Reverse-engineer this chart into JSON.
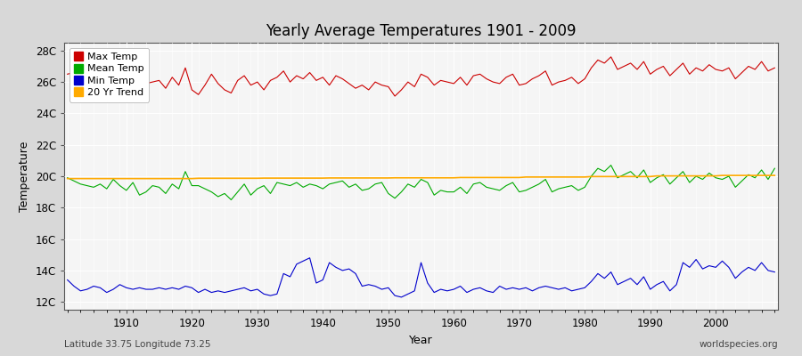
{
  "title": "Yearly Average Temperatures 1901 - 2009",
  "xlabel": "Year",
  "ylabel": "Temperature",
  "year_start": 1901,
  "year_end": 2009,
  "ylim": [
    11.5,
    28.5
  ],
  "yticks": [
    12,
    14,
    16,
    18,
    20,
    22,
    24,
    26,
    28
  ],
  "ytick_labels": [
    "12C",
    "14C",
    "16C",
    "18C",
    "20C",
    "22C",
    "24C",
    "26C",
    "28C"
  ],
  "xticks": [
    1910,
    1920,
    1930,
    1940,
    1950,
    1960,
    1970,
    1980,
    1990,
    2000
  ],
  "fig_bg_color": "#d8d8d8",
  "plot_bg_color": "#f5f5f5",
  "grid_color": "#ffffff",
  "legend_items": [
    {
      "label": "Max Temp",
      "color": "#cc0000"
    },
    {
      "label": "Mean Temp",
      "color": "#00aa00"
    },
    {
      "label": "Min Temp",
      "color": "#0000cc"
    },
    {
      "label": "20 Yr Trend",
      "color": "#ffaa00"
    }
  ],
  "max_temp": [
    26.5,
    26.6,
    27.6,
    26.4,
    26.2,
    26.3,
    25.5,
    26.2,
    26.8,
    26.5,
    26.1,
    25.3,
    25.9,
    26.0,
    26.1,
    25.6,
    26.3,
    25.8,
    26.9,
    25.5,
    25.2,
    25.8,
    26.5,
    25.9,
    25.5,
    25.3,
    26.1,
    26.4,
    25.8,
    26.0,
    25.5,
    26.1,
    26.3,
    26.7,
    26.0,
    26.4,
    26.2,
    26.6,
    26.1,
    26.3,
    25.8,
    26.4,
    26.2,
    25.9,
    25.6,
    25.8,
    25.5,
    26.0,
    25.8,
    25.7,
    25.1,
    25.5,
    26.0,
    25.7,
    26.5,
    26.3,
    25.8,
    26.1,
    26.0,
    25.9,
    26.3,
    25.8,
    26.4,
    26.5,
    26.2,
    26.0,
    25.9,
    26.3,
    26.5,
    25.8,
    25.9,
    26.2,
    26.4,
    26.7,
    25.8,
    26.0,
    26.1,
    26.3,
    25.9,
    26.2,
    26.9,
    27.4,
    27.2,
    27.6,
    26.8,
    27.0,
    27.2,
    26.8,
    27.3,
    26.5,
    26.8,
    27.0,
    26.4,
    26.8,
    27.2,
    26.5,
    26.9,
    26.7,
    27.1,
    26.8,
    26.7,
    26.9,
    26.2,
    26.6,
    27.0,
    26.8,
    27.3,
    26.7,
    26.9
  ],
  "mean_temp": [
    19.9,
    19.7,
    19.5,
    19.4,
    19.3,
    19.5,
    19.2,
    19.8,
    19.4,
    19.1,
    19.6,
    18.8,
    19.0,
    19.4,
    19.3,
    18.9,
    19.5,
    19.2,
    20.3,
    19.4,
    19.4,
    19.2,
    19.0,
    18.7,
    18.9,
    18.5,
    19.0,
    19.5,
    18.8,
    19.2,
    19.4,
    18.9,
    19.6,
    19.5,
    19.4,
    19.6,
    19.3,
    19.5,
    19.4,
    19.2,
    19.5,
    19.6,
    19.7,
    19.3,
    19.5,
    19.1,
    19.2,
    19.5,
    19.6,
    18.9,
    18.6,
    19.0,
    19.5,
    19.3,
    19.8,
    19.6,
    18.8,
    19.1,
    19.0,
    19.0,
    19.3,
    18.9,
    19.5,
    19.6,
    19.3,
    19.2,
    19.1,
    19.4,
    19.6,
    19.0,
    19.1,
    19.3,
    19.5,
    19.8,
    19.0,
    19.2,
    19.3,
    19.4,
    19.1,
    19.3,
    20.0,
    20.5,
    20.3,
    20.7,
    19.9,
    20.1,
    20.3,
    19.9,
    20.4,
    19.6,
    19.9,
    20.1,
    19.5,
    19.9,
    20.3,
    19.6,
    20.0,
    19.8,
    20.2,
    19.9,
    19.8,
    20.0,
    19.3,
    19.7,
    20.1,
    19.9,
    20.4,
    19.8,
    20.5
  ],
  "min_temp": [
    13.4,
    13.0,
    12.7,
    12.8,
    13.0,
    12.9,
    12.6,
    12.8,
    13.1,
    12.9,
    12.8,
    12.9,
    12.8,
    12.8,
    12.9,
    12.8,
    12.9,
    12.8,
    13.0,
    12.9,
    12.6,
    12.8,
    12.6,
    12.7,
    12.6,
    12.7,
    12.8,
    12.9,
    12.7,
    12.8,
    12.5,
    12.4,
    12.5,
    13.8,
    13.6,
    14.4,
    14.6,
    14.8,
    13.2,
    13.4,
    14.5,
    14.2,
    14.0,
    14.1,
    13.8,
    13.0,
    13.1,
    13.0,
    12.8,
    12.9,
    12.4,
    12.3,
    12.5,
    12.7,
    14.5,
    13.2,
    12.6,
    12.8,
    12.7,
    12.8,
    13.0,
    12.6,
    12.8,
    12.9,
    12.7,
    12.6,
    13.0,
    12.8,
    12.9,
    12.8,
    12.9,
    12.7,
    12.9,
    13.0,
    12.9,
    12.8,
    12.9,
    12.7,
    12.8,
    12.9,
    13.3,
    13.8,
    13.5,
    13.9,
    13.1,
    13.3,
    13.5,
    13.1,
    13.6,
    12.8,
    13.1,
    13.3,
    12.7,
    13.1,
    14.5,
    14.2,
    14.7,
    14.1,
    14.3,
    14.2,
    14.6,
    14.2,
    13.5,
    13.9,
    14.2,
    14.0,
    14.5,
    14.0,
    13.9
  ],
  "trend_temp": [
    19.85,
    19.85,
    19.85,
    19.85,
    19.85,
    19.85,
    19.85,
    19.85,
    19.85,
    19.85,
    19.85,
    19.85,
    19.85,
    19.85,
    19.85,
    19.85,
    19.85,
    19.85,
    19.85,
    19.85,
    19.87,
    19.87,
    19.87,
    19.87,
    19.87,
    19.87,
    19.87,
    19.87,
    19.87,
    19.87,
    19.88,
    19.88,
    19.88,
    19.88,
    19.88,
    19.88,
    19.88,
    19.88,
    19.88,
    19.88,
    19.89,
    19.89,
    19.89,
    19.89,
    19.89,
    19.89,
    19.89,
    19.89,
    19.89,
    19.89,
    19.9,
    19.9,
    19.9,
    19.9,
    19.9,
    19.9,
    19.9,
    19.9,
    19.9,
    19.9,
    19.92,
    19.92,
    19.92,
    19.92,
    19.92,
    19.92,
    19.92,
    19.92,
    19.92,
    19.92,
    19.95,
    19.95,
    19.95,
    19.95,
    19.95,
    19.95,
    19.95,
    19.95,
    19.95,
    19.95,
    19.98,
    19.98,
    19.98,
    19.98,
    19.98,
    19.98,
    19.98,
    19.98,
    19.98,
    19.98,
    20.02,
    20.02,
    20.02,
    20.02,
    20.02,
    20.02,
    20.02,
    20.02,
    20.02,
    20.02,
    20.05,
    20.05,
    20.05,
    20.05,
    20.05,
    20.05,
    20.05,
    20.05,
    20.05
  ],
  "footer_left": "Latitude 33.75 Longitude 73.25",
  "footer_right": "worldspecies.org"
}
